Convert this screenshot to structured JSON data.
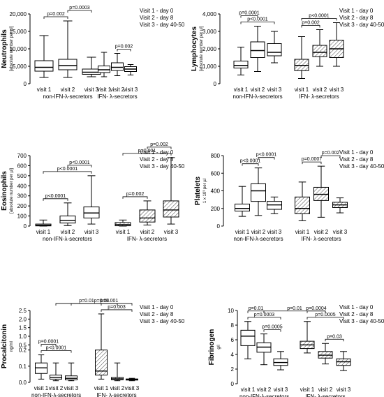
{
  "legend": [
    "Visit 1 - day 0",
    "Visit 2 - day 8",
    "Visit 3 - day 40-50"
  ],
  "chart_data": [
    {
      "type": "box",
      "ylabel": "Neutrophils",
      "yunit": "[absolute number per µl]",
      "ylim": [
        0,
        20000
      ],
      "yticks": [
        "0",
        "5,000",
        "10,000",
        "15,000",
        "20,000"
      ],
      "tick_values": [
        0,
        5000,
        10000,
        15000,
        20000
      ],
      "categories": [
        "visit 1",
        "visit 2",
        "visit 3",
        "visit 1",
        "visit 2",
        "visit 3"
      ],
      "groups": [
        "non-IFN-λ-secretors",
        "IFN- λ-secretors"
      ],
      "boxes": [
        {
          "min": 1800,
          "q1": 3600,
          "median": 4700,
          "q3": 6600,
          "max": 13800
        },
        {
          "min": 1800,
          "q1": 4000,
          "median": 5200,
          "q3": 7000,
          "max": 18000
        },
        {
          "min": 2000,
          "q1": 2700,
          "median": 3300,
          "q3": 4200,
          "max": 7600
        },
        {
          "min": 2000,
          "q1": 3200,
          "median": 4000,
          "q3": 5100,
          "max": 9000
        },
        {
          "min": 2300,
          "q1": 3800,
          "median": 4700,
          "q3": 6000,
          "max": 8700
        },
        {
          "min": 2500,
          "q1": 3500,
          "median": 4200,
          "q3": 4900,
          "max": 5500
        }
      ],
      "brackets": [
        {
          "from": 0,
          "to": 1,
          "label": "p=0.002"
        },
        {
          "from": 1,
          "to": 2,
          "label": "p=0.0003"
        },
        {
          "from": 4,
          "to": 5,
          "label": "p=0.002"
        }
      ],
      "hatch": false
    },
    {
      "type": "box",
      "ylabel": "Lymphocytes",
      "yunit": "[absolute number per µl]",
      "ylim": [
        0,
        4000
      ],
      "yticks": [
        "0",
        "1,000",
        "2,000",
        "3,000",
        "4,000"
      ],
      "tick_values": [
        0,
        1000,
        2000,
        3000,
        4000
      ],
      "categories": [
        "visit 1",
        "visit 2",
        "visit 3",
        "visit 1",
        "visit 2",
        "visit 3"
      ],
      "groups": [
        "non-IFN-λ-secretors",
        "IFN- λ-secretors"
      ],
      "boxes": [
        {
          "min": 500,
          "q1": 900,
          "median": 1050,
          "q3": 1300,
          "max": 2100
        },
        {
          "min": 700,
          "q1": 1500,
          "median": 1900,
          "q3": 2400,
          "max": 3300
        },
        {
          "min": 1200,
          "q1": 1600,
          "median": 1800,
          "q3": 2300,
          "max": 3000
        },
        {
          "min": 300,
          "q1": 750,
          "median": 1050,
          "q3": 1400,
          "max": 2700
        },
        {
          "min": 1000,
          "q1": 1550,
          "median": 1800,
          "q3": 2200,
          "max": 3100
        },
        {
          "min": 1000,
          "q1": 1500,
          "median": 2000,
          "q3": 2500,
          "max": 3500
        }
      ],
      "brackets": [
        {
          "from": 0,
          "to": 2,
          "label": "p<0.0001"
        },
        {
          "from": 0,
          "to": 1,
          "label": "p=0.0001"
        },
        {
          "from": 3,
          "to": 5,
          "label": "p<0.0001"
        },
        {
          "from": 3,
          "to": 4,
          "label": "p=0.002"
        }
      ],
      "hatch": true
    },
    {
      "type": "box",
      "ylabel": "Eosinophils",
      "yunit": "[absolute number per µl]",
      "ylim": [
        0,
        700
      ],
      "yticks": [
        "0",
        "100",
        "200",
        "300",
        "400",
        "500",
        "600",
        "700"
      ],
      "tick_values": [
        0,
        100,
        200,
        300,
        400,
        500,
        600,
        700
      ],
      "categories": [
        "visit 1",
        "visit 2",
        "visit 3",
        "visit 1",
        "visit 2",
        "visit 3"
      ],
      "groups": [
        "non-IFN-λ-secretors",
        "IFN- λ-secretors"
      ],
      "boxes": [
        {
          "min": 0,
          "q1": 2,
          "median": 8,
          "q3": 20,
          "max": 60
        },
        {
          "min": 5,
          "q1": 30,
          "median": 55,
          "q3": 100,
          "max": 230
        },
        {
          "min": 20,
          "q1": 80,
          "median": 130,
          "q3": 190,
          "max": 500
        },
        {
          "min": 0,
          "q1": 3,
          "median": 15,
          "q3": 35,
          "max": 60
        },
        {
          "min": 10,
          "q1": 40,
          "median": 80,
          "q3": 160,
          "max": 250
        },
        {
          "min": 20,
          "q1": 90,
          "median": 160,
          "q3": 250,
          "max": 680
        }
      ],
      "brackets": [
        {
          "from": 0,
          "to": 2,
          "label": "p<0.0001"
        },
        {
          "from": 1,
          "to": 2,
          "label": "p<0.0001"
        },
        {
          "from": 0,
          "to": 1,
          "label": "p<0.0001"
        },
        {
          "from": 3,
          "to": 5,
          "label": "p=0.001"
        },
        {
          "from": 4,
          "to": 5,
          "label": "p=0.002"
        },
        {
          "from": 3,
          "to": 4,
          "label": "p=0.002"
        }
      ],
      "hatch": true
    },
    {
      "type": "box",
      "ylabel": "Platelets",
      "yunit": "1 x 10³ per µl",
      "ylim": [
        0,
        800
      ],
      "yticks": [
        "0",
        "200",
        "400",
        "600",
        "800"
      ],
      "tick_values": [
        0,
        200,
        400,
        600,
        800
      ],
      "categories": [
        "visit 1",
        "visit 2",
        "visit 3",
        "visit 1",
        "visit 2",
        "visit 3"
      ],
      "groups": [
        "non-IFN-λ-secretors",
        "IFN- λ-secretors"
      ],
      "boxes": [
        {
          "min": 110,
          "q1": 170,
          "median": 200,
          "q3": 250,
          "max": 450
        },
        {
          "min": 120,
          "q1": 280,
          "median": 400,
          "q3": 480,
          "max": 660
        },
        {
          "min": 140,
          "q1": 190,
          "median": 240,
          "q3": 280,
          "max": 330
        },
        {
          "min": 60,
          "q1": 140,
          "median": 200,
          "q3": 330,
          "max": 500
        },
        {
          "min": 100,
          "q1": 290,
          "median": 360,
          "q3": 440,
          "max": 680
        },
        {
          "min": 150,
          "q1": 210,
          "median": 240,
          "q3": 270,
          "max": 320
        }
      ],
      "brackets": [
        {
          "from": 0,
          "to": 1,
          "label": "p<0.0001"
        },
        {
          "from": 1,
          "to": 2,
          "label": "p<0.0001"
        },
        {
          "from": 3,
          "to": 4,
          "label": "p=0.0007"
        },
        {
          "from": 4,
          "to": 5,
          "label": "p=0.002"
        }
      ],
      "hatch": true
    },
    {
      "type": "box",
      "ylabel": "Procalcitonin",
      "yunit": "ng/ml",
      "scale": "broken",
      "ylim": [
        0,
        2.5
      ],
      "yticks": [
        "0.0",
        "0.1",
        "0.2",
        "0.5",
        "1.0",
        "1.5",
        "2.0",
        "2.5"
      ],
      "tick_values": [
        0,
        0.1,
        0.2,
        0.5,
        1.0,
        1.5,
        2.0,
        2.5
      ],
      "categories": [
        "visit 1",
        "visit 2",
        "visit 3",
        "visit 1",
        "visit 2",
        "visit 3"
      ],
      "groups": [
        "non-IFN-λ-secretors",
        "IFN- λ-secretors"
      ],
      "boxes": [
        {
          "min": 0.02,
          "q1": 0.055,
          "median": 0.09,
          "q3": 0.12,
          "max": 0.17
        },
        {
          "min": 0.01,
          "q1": 0.02,
          "median": 0.03,
          "q3": 0.045,
          "max": 0.12
        },
        {
          "min": 0.01,
          "q1": 0.015,
          "median": 0.025,
          "q3": 0.04,
          "max": 0.12
        },
        {
          "min": 0.02,
          "q1": 0.045,
          "median": 0.07,
          "q3": 0.2,
          "max": 2.3
        },
        {
          "min": 0.01,
          "q1": 0.016,
          "median": 0.022,
          "q3": 0.03,
          "max": 0.12
        },
        {
          "min": 0.01,
          "q1": 0.014,
          "median": 0.018,
          "q3": 0.021,
          "max": 0.025
        }
      ],
      "brackets": [
        {
          "from": 0,
          "to": 2,
          "label": "p<0.0001"
        },
        {
          "from": 0,
          "to": 1,
          "label": "p=0.0001"
        },
        {
          "from": 3,
          "to": 5,
          "label": "p=0.003"
        },
        {
          "from": 3,
          "to": 4,
          "label": "p=0.001"
        },
        {
          "from": 1,
          "to": 4,
          "label": "p=0.01"
        },
        {
          "from": 2,
          "to": 5,
          "label": "p=0.04"
        }
      ],
      "hatch": true
    },
    {
      "type": "box",
      "ylabel": "Fibrinogen",
      "yunit": "g/l",
      "ylim": [
        0,
        10
      ],
      "yticks": [
        "0",
        "2",
        "4",
        "6",
        "8",
        "10"
      ],
      "tick_values": [
        0,
        2,
        4,
        6,
        8,
        10
      ],
      "categories": [
        "visit 1",
        "visit 2",
        "visit 3",
        "visit 1",
        "visit 2",
        "visit 3"
      ],
      "groups": [
        "non-IFN-λ-secretors",
        "IFN- λ-secretors"
      ],
      "boxes": [
        {
          "min": 3.4,
          "q1": 5.2,
          "median": 6.5,
          "q3": 7.3,
          "max": 8.5
        },
        {
          "min": 2.6,
          "q1": 4.3,
          "median": 5.0,
          "q3": 5.6,
          "max": 6.8
        },
        {
          "min": 1.9,
          "q1": 2.5,
          "median": 2.9,
          "q3": 3.4,
          "max": 4.4
        },
        {
          "min": 4.2,
          "q1": 4.8,
          "median": 5.3,
          "q3": 5.8,
          "max": 8.5
        },
        {
          "min": 2.7,
          "q1": 3.5,
          "median": 3.9,
          "q3": 4.4,
          "max": 5.5
        },
        {
          "min": 1.8,
          "q1": 2.5,
          "median": 3.0,
          "q3": 3.4,
          "max": 4.4
        }
      ],
      "brackets": [
        {
          "from": 0,
          "to": 2,
          "label": "p=0.0003"
        },
        {
          "from": 0,
          "to": 1,
          "label": "p=0.01"
        },
        {
          "from": 1,
          "to": 2,
          "label": "p=0.0005"
        },
        {
          "from": 3,
          "to": 5,
          "label": "p=0.0005"
        },
        {
          "from": 3,
          "to": 4,
          "label": "p=0.0004"
        },
        {
          "from": 4,
          "to": 5,
          "label": "p=0.03"
        },
        {
          "from": 1,
          "to": 4,
          "label": "p=0.01"
        }
      ],
      "hatch": true
    }
  ]
}
